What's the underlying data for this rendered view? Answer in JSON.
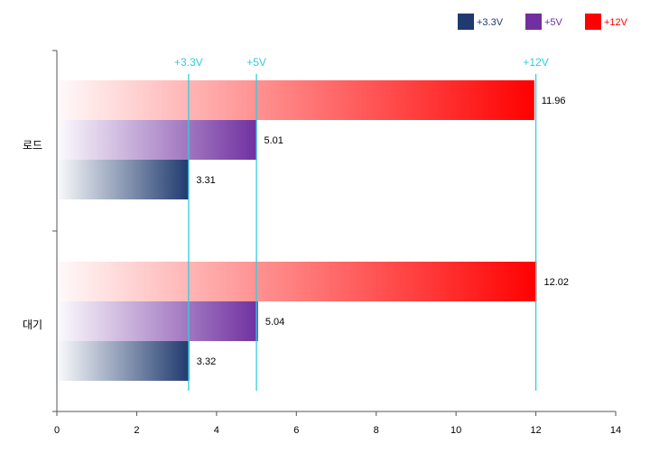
{
  "chart_data": {
    "type": "bar",
    "orientation": "horizontal",
    "categories": [
      "로드",
      "대기"
    ],
    "series": [
      {
        "name": "+3.3V",
        "values": [
          3.31,
          3.32
        ],
        "color": "#1f3a6e"
      },
      {
        "name": "+5V",
        "values": [
          5.01,
          5.04
        ],
        "color": "#7030a0"
      },
      {
        "name": "+12V",
        "values": [
          11.96,
          12.02
        ],
        "color": "#ff0000"
      }
    ],
    "xlim": [
      0,
      14
    ],
    "x_ticks": [
      0,
      2,
      4,
      6,
      8,
      10,
      12,
      14
    ],
    "reference_lines": [
      {
        "label": "+3.3V",
        "value": 3.3
      },
      {
        "label": "+5V",
        "value": 5
      },
      {
        "label": "+12V",
        "value": 12
      }
    ],
    "reference_line_color": "#33ccdd",
    "legend_position": "top-right",
    "grid": false,
    "title": "",
    "xlabel": "",
    "ylabel": ""
  }
}
